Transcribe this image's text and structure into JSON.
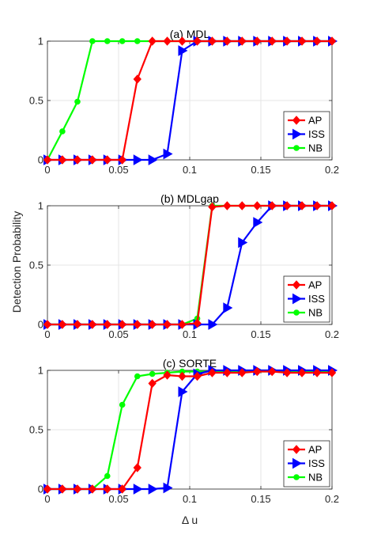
{
  "figure": {
    "ylabel": "Detection Probability",
    "xlabel": "Δ u"
  },
  "chart_data": [
    {
      "type": "line",
      "title": "(a) MDL",
      "xlim": [
        0,
        0.2
      ],
      "ylim": [
        0,
        1
      ],
      "xticks": [
        "0",
        "0.05",
        "0.1",
        "0.15",
        "0.2"
      ],
      "yticks": [
        "0",
        "0.5",
        "1"
      ],
      "grid": true,
      "legend_position": "bottom-right",
      "x": [
        0,
        0.0105,
        0.0211,
        0.0316,
        0.0421,
        0.0526,
        0.0632,
        0.0737,
        0.0842,
        0.0947,
        0.1053,
        0.1158,
        0.1263,
        0.1368,
        0.1474,
        0.1579,
        0.1684,
        0.1789,
        0.1895,
        0.2
      ],
      "series": [
        {
          "name": "AP",
          "color": "#ff0000",
          "marker": "diamond",
          "values": [
            0,
            0,
            0,
            0,
            0,
            0,
            0.68,
            1,
            1,
            1,
            1,
            1,
            1,
            1,
            1,
            1,
            1,
            1,
            1,
            1
          ]
        },
        {
          "name": "ISS",
          "color": "#0000ff",
          "marker": "triangle-right",
          "values": [
            0,
            0,
            0,
            0,
            0,
            0,
            0,
            0,
            0.05,
            0.92,
            1,
            1,
            1,
            1,
            1,
            1,
            1,
            1,
            1,
            1
          ]
        },
        {
          "name": "NB",
          "color": "#00ff00",
          "marker": "circle",
          "values": [
            0,
            0.24,
            0.49,
            1,
            1,
            1,
            1,
            1,
            1,
            1,
            1,
            1,
            1,
            1,
            1,
            1,
            1,
            1,
            1,
            1
          ]
        }
      ]
    },
    {
      "type": "line",
      "title": "(b) MDLgap",
      "xlim": [
        0,
        0.2
      ],
      "ylim": [
        0,
        1
      ],
      "xticks": [
        "0",
        "0.05",
        "0.1",
        "0.15",
        "0.2"
      ],
      "yticks": [
        "0",
        "0.5",
        "1"
      ],
      "grid": true,
      "legend_position": "bottom-right",
      "x": [
        0,
        0.0105,
        0.0211,
        0.0316,
        0.0421,
        0.0526,
        0.0632,
        0.0737,
        0.0842,
        0.0947,
        0.1053,
        0.1158,
        0.1263,
        0.1368,
        0.1474,
        0.1579,
        0.1684,
        0.1789,
        0.1895,
        0.2
      ],
      "series": [
        {
          "name": "AP",
          "color": "#ff0000",
          "marker": "diamond",
          "values": [
            0,
            0,
            0,
            0,
            0,
            0,
            0,
            0,
            0,
            0,
            0.01,
            0.99,
            1,
            1,
            1,
            1,
            1,
            1,
            1,
            1
          ]
        },
        {
          "name": "ISS",
          "color": "#0000ff",
          "marker": "triangle-right",
          "values": [
            0,
            0,
            0,
            0,
            0,
            0,
            0,
            0,
            0,
            0,
            0,
            0,
            0.14,
            0.69,
            0.86,
            1,
            1,
            1,
            1,
            1
          ]
        },
        {
          "name": "NB",
          "color": "#00ff00",
          "marker": "circle",
          "values": [
            0,
            0,
            0,
            0,
            0,
            0,
            0,
            0,
            0,
            0,
            0.05,
            1,
            1,
            1,
            1,
            1,
            1,
            1,
            1,
            1
          ]
        }
      ]
    },
    {
      "type": "line",
      "title": "(c) SORTE",
      "xlim": [
        0,
        0.2
      ],
      "ylim": [
        0,
        1
      ],
      "xticks": [
        "0",
        "0.05",
        "0.1",
        "0.15",
        "0.2"
      ],
      "yticks": [
        "0",
        "0.5",
        "1"
      ],
      "grid": true,
      "legend_position": "bottom-right",
      "x": [
        0,
        0.0105,
        0.0211,
        0.0316,
        0.0421,
        0.0526,
        0.0632,
        0.0737,
        0.0842,
        0.0947,
        0.1053,
        0.1158,
        0.1263,
        0.1368,
        0.1474,
        0.1579,
        0.1684,
        0.1789,
        0.1895,
        0.2
      ],
      "series": [
        {
          "name": "AP",
          "color": "#ff0000",
          "marker": "diamond",
          "values": [
            0,
            0,
            0,
            0,
            0,
            0,
            0.18,
            0.89,
            0.96,
            0.95,
            0.95,
            0.98,
            0.98,
            0.98,
            0.99,
            0.99,
            0.98,
            0.98,
            0.98,
            0.98
          ]
        },
        {
          "name": "ISS",
          "color": "#0000ff",
          "marker": "triangle-right",
          "values": [
            0,
            0,
            0,
            0,
            0,
            0,
            0,
            0,
            0.01,
            0.82,
            0.97,
            1,
            1,
            1,
            1,
            1,
            1,
            1,
            1,
            1
          ]
        },
        {
          "name": "NB",
          "color": "#00ff00",
          "marker": "circle",
          "values": [
            0,
            0,
            0,
            0,
            0.11,
            0.71,
            0.95,
            0.97,
            0.98,
            0.99,
            0.99,
            0.99,
            0.99,
            0.99,
            0.99,
            0.99,
            0.99,
            0.99,
            0.99,
            0.99
          ]
        }
      ]
    }
  ]
}
